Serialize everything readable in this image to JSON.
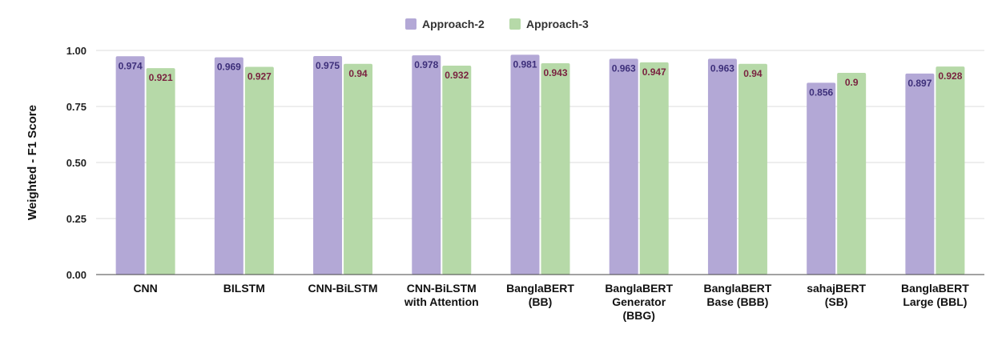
{
  "chart_data": {
    "type": "bar",
    "ylabel": "Weighted - F1 Score",
    "xlabel": "",
    "ylim": [
      0,
      1
    ],
    "yticks": [
      "0.00",
      "0.25",
      "0.50",
      "0.75",
      "1.00"
    ],
    "grid": true,
    "legend_position": "top-center",
    "categories": [
      [
        "CNN"
      ],
      [
        "BILSTM"
      ],
      [
        "CNN-BiLSTM"
      ],
      [
        "CNN-BiLSTM",
        "with Attention"
      ],
      [
        "BanglaBERT",
        "(BB)"
      ],
      [
        "BanglaBERT",
        "Generator",
        "(BBG)"
      ],
      [
        "BanglaBERT",
        "Base (BBB)"
      ],
      [
        "sahajBERT",
        "(SB)"
      ],
      [
        "BanglaBERT",
        "Large (BBL)"
      ]
    ],
    "series": [
      {
        "name": "Approach-2",
        "color": "#b3a8d6",
        "values": [
          0.974,
          0.969,
          0.975,
          0.978,
          0.981,
          0.963,
          0.963,
          0.856,
          0.897
        ],
        "labels": [
          "0.974",
          "0.969",
          "0.975",
          "0.978",
          "0.981",
          "0.963",
          "0.963",
          "0.856",
          "0.897"
        ]
      },
      {
        "name": "Approach-3",
        "color": "#b6d9a8",
        "values": [
          0.921,
          0.927,
          0.94,
          0.932,
          0.943,
          0.947,
          0.94,
          0.9,
          0.928
        ],
        "labels": [
          "0.921",
          "0.927",
          "0.94",
          "0.932",
          "0.943",
          "0.947",
          "0.94",
          "0.9",
          "0.928"
        ]
      }
    ]
  }
}
